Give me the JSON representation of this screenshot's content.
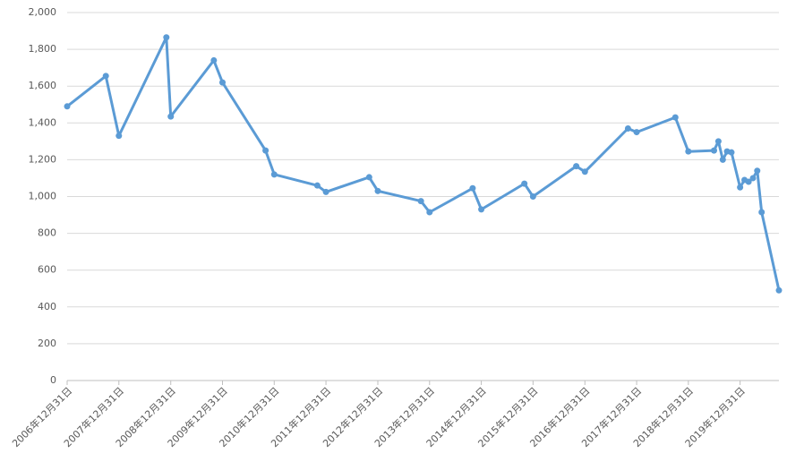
{
  "chart_data": {
    "type": "line",
    "color": "#5b9bd5",
    "grid": true,
    "x": [
      "2006-12-31",
      "2007-09-30",
      "2007-12-31",
      "2008-11-30",
      "2008-12-31",
      "2009-10-31",
      "2009-12-31",
      "2010-10-31",
      "2010-12-31",
      "2011-10-31",
      "2011-12-31",
      "2012-10-31",
      "2012-12-31",
      "2013-10-31",
      "2013-12-31",
      "2014-10-31",
      "2014-12-31",
      "2015-10-31",
      "2015-12-31",
      "2016-10-31",
      "2016-12-31",
      "2017-10-31",
      "2017-12-31",
      "2018-09-30",
      "2018-12-31",
      "2019-06-30",
      "2019-07-31",
      "2019-08-31",
      "2019-09-30",
      "2019-10-31",
      "2019-12-31",
      "2020-01-31",
      "2020-02-29",
      "2020-03-31",
      "2020-04-30",
      "2020-05-31",
      "2020-09-30"
    ],
    "values": [
      1490,
      1655,
      1330,
      1865,
      1435,
      1740,
      1620,
      1250,
      1120,
      1060,
      1025,
      1105,
      1030,
      975,
      915,
      1045,
      930,
      1070,
      1000,
      1165,
      1135,
      1370,
      1350,
      1430,
      1245,
      1250,
      1300,
      1200,
      1245,
      1240,
      1050,
      1090,
      1080,
      1100,
      1140,
      915,
      490
    ],
    "xlim": [
      "2006-12-31",
      "2020-09-30"
    ],
    "xticks": [
      {
        "value": "2006-12-31",
        "label": "2006年12月31日"
      },
      {
        "value": "2007-12-31",
        "label": "2007年12月31日"
      },
      {
        "value": "2008-12-31",
        "label": "2008年12月31日"
      },
      {
        "value": "2009-12-31",
        "label": "2009年12月31日"
      },
      {
        "value": "2010-12-31",
        "label": "2010年12月31日"
      },
      {
        "value": "2011-12-31",
        "label": "2011年12月31日"
      },
      {
        "value": "2012-12-31",
        "label": "2012年12月31日"
      },
      {
        "value": "2013-12-31",
        "label": "2013年12月31日"
      },
      {
        "value": "2014-12-31",
        "label": "2014年12月31日"
      },
      {
        "value": "2015-12-31",
        "label": "2015年12月31日"
      },
      {
        "value": "2016-12-31",
        "label": "2016年12月31日"
      },
      {
        "value": "2017-12-31",
        "label": "2017年12月31日"
      },
      {
        "value": "2018-12-31",
        "label": "2018年12月31日"
      },
      {
        "value": "2019-12-31",
        "label": "2019年12月31日"
      }
    ],
    "ylim": [
      0,
      2000
    ],
    "yticks": [
      0,
      200,
      400,
      600,
      800,
      {
        "value": 1000,
        "label": "1,000"
      },
      {
        "value": 1200,
        "label": "1,200"
      },
      {
        "value": 1400,
        "label": "1,400"
      },
      {
        "value": 1600,
        "label": "1,600"
      },
      {
        "value": 1800,
        "label": "1,800"
      },
      {
        "value": 2000,
        "label": "2,000"
      }
    ]
  }
}
